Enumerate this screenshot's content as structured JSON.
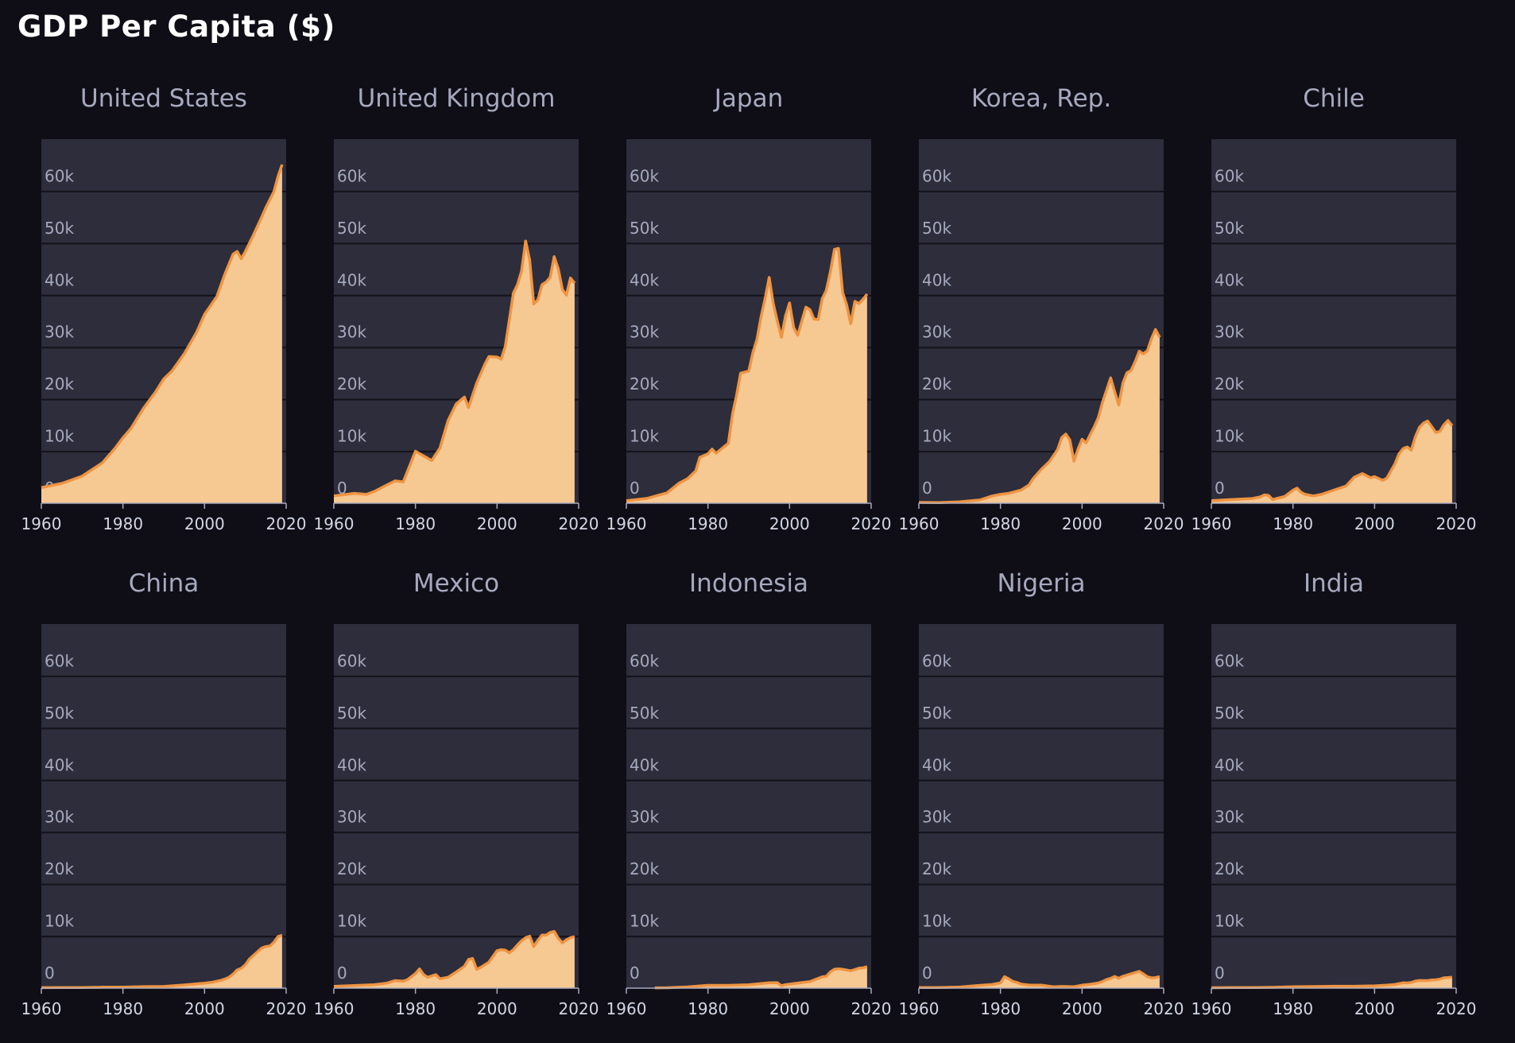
{
  "page": {
    "title": "GDP Per Capita ($)"
  },
  "colors": {
    "background": "#0f0e17",
    "panel": "#2d2d3b",
    "grid": "#14131d",
    "fill": "#f6c892",
    "line": "#ee9442",
    "text": "#a7a9be",
    "title": "#ffffff"
  },
  "chart_data": [
    {
      "type": "area",
      "title": "United States",
      "xlim": [
        1960,
        2020
      ],
      "ylim": [
        0,
        70000
      ],
      "x_ticks": [
        "1960",
        "1980",
        "2000",
        "2020"
      ],
      "y_ticks": [
        "0",
        "10k",
        "20k",
        "30k",
        "40k",
        "50k",
        "60k"
      ],
      "grid": true,
      "x": [
        1960,
        1965,
        1970,
        1975,
        1978,
        1980,
        1982,
        1985,
        1988,
        1990,
        1992,
        1995,
        1998,
        2000,
        2003,
        2005,
        2007,
        2008,
        2009,
        2010,
        2012,
        2014,
        2015,
        2017,
        2018,
        2019
      ],
      "values": [
        3000,
        3800,
        5200,
        7800,
        10500,
        12600,
        14400,
        18200,
        21400,
        23900,
        25400,
        28700,
        32800,
        36300,
        39700,
        44100,
        47900,
        48400,
        47000,
        48400,
        51600,
        55000,
        56800,
        59900,
        62800,
        65100
      ]
    },
    {
      "type": "area",
      "title": "United Kingdom",
      "xlim": [
        1960,
        2020
      ],
      "ylim": [
        0,
        70000
      ],
      "x_ticks": [
        "1960",
        "1980",
        "2000",
        "2020"
      ],
      "y_ticks": [
        "0",
        "10k",
        "20k",
        "30k",
        "40k",
        "50k",
        "60k"
      ],
      "grid": true,
      "x": [
        1960,
        1965,
        1968,
        1970,
        1973,
        1975,
        1977,
        1980,
        1982,
        1984,
        1986,
        1988,
        1990,
        1992,
        1993,
        1995,
        1997,
        1998,
        2000,
        2001,
        2002,
        2004,
        2005,
        2006,
        2007,
        2008,
        2009,
        2010,
        2011,
        2012,
        2013,
        2014,
        2015,
        2016,
        2017,
        2018,
        2019
      ],
      "values": [
        1400,
        1900,
        1700,
        2300,
        3500,
        4300,
        4100,
        10000,
        9100,
        8200,
        10600,
        15900,
        19100,
        20400,
        18400,
        23100,
        26700,
        28200,
        28100,
        27700,
        30100,
        40400,
        42000,
        44600,
        50400,
        46700,
        38300,
        39100,
        42000,
        42500,
        43400,
        47400,
        45100,
        41100,
        40000,
        43300,
        42300
      ]
    },
    {
      "type": "area",
      "title": "Japan",
      "xlim": [
        1960,
        2020
      ],
      "ylim": [
        0,
        70000
      ],
      "x_ticks": [
        "1960",
        "1980",
        "2000",
        "2020"
      ],
      "y_ticks": [
        "0",
        "10k",
        "20k",
        "30k",
        "40k",
        "50k",
        "60k"
      ],
      "grid": true,
      "x": [
        1960,
        1965,
        1970,
        1973,
        1975,
        1977,
        1978,
        1980,
        1981,
        1982,
        1984,
        1985,
        1986,
        1987,
        1988,
        1990,
        1991,
        1992,
        1993,
        1994,
        1995,
        1996,
        1997,
        1998,
        1999,
        2000,
        2001,
        2002,
        2003,
        2004,
        2005,
        2006,
        2007,
        2008,
        2009,
        2010,
        2011,
        2012,
        2013,
        2014,
        2015,
        2016,
        2017,
        2018,
        2019
      ],
      "values": [
        480,
        920,
        2000,
        3900,
        4700,
        6200,
        8800,
        9500,
        10400,
        9600,
        10900,
        11500,
        17100,
        20700,
        25000,
        25400,
        28900,
        31500,
        35800,
        39300,
        43400,
        38400,
        35000,
        31900,
        36000,
        38500,
        33800,
        32300,
        35000,
        37700,
        37200,
        35400,
        35300,
        39300,
        40900,
        44500,
        48800,
        49000,
        40500,
        38100,
        34500,
        38800,
        38400,
        39200,
        40200
      ]
    },
    {
      "type": "area",
      "title": "Korea, Rep.",
      "xlim": [
        1960,
        2020
      ],
      "ylim": [
        0,
        70000
      ],
      "x_ticks": [
        "1960",
        "1980",
        "2000",
        "2020"
      ],
      "y_ticks": [
        "0",
        "10k",
        "20k",
        "30k",
        "40k",
        "50k",
        "60k"
      ],
      "grid": true,
      "x": [
        1960,
        1965,
        1970,
        1975,
        1978,
        1980,
        1982,
        1985,
        1987,
        1988,
        1990,
        1992,
        1994,
        1995,
        1996,
        1997,
        1998,
        1999,
        2000,
        2001,
        2002,
        2003,
        2004,
        2005,
        2006,
        2007,
        2008,
        2009,
        2010,
        2011,
        2012,
        2013,
        2014,
        2015,
        2016,
        2017,
        2018,
        2019
      ],
      "values": [
        160,
        110,
        280,
        620,
        1400,
        1700,
        1900,
        2500,
        3500,
        4700,
        6500,
        8000,
        10300,
        12600,
        13300,
        12200,
        8100,
        10400,
        12300,
        11600,
        13200,
        14700,
        16500,
        19400,
        21700,
        24100,
        21400,
        18900,
        23100,
        25100,
        25500,
        27200,
        29200,
        28700,
        29300,
        31600,
        33400,
        31900
      ]
    },
    {
      "type": "area",
      "title": "Chile",
      "xlim": [
        1960,
        2020
      ],
      "ylim": [
        0,
        70000
      ],
      "x_ticks": [
        "1960",
        "1980",
        "2000",
        "2020"
      ],
      "y_ticks": [
        "0",
        "10k",
        "20k",
        "30k",
        "40k",
        "50k",
        "60k"
      ],
      "grid": true,
      "x": [
        1960,
        1965,
        1970,
        1972,
        1973,
        1974,
        1975,
        1976,
        1978,
        1980,
        1981,
        1982,
        1983,
        1985,
        1987,
        1990,
        1993,
        1995,
        1997,
        1998,
        1999,
        2000,
        2002,
        2003,
        2004,
        2005,
        2006,
        2007,
        2008,
        2009,
        2010,
        2011,
        2012,
        2013,
        2014,
        2015,
        2016,
        2017,
        2018,
        2019
      ],
      "values": [
        500,
        700,
        900,
        1200,
        1600,
        1500,
        700,
        900,
        1300,
        2500,
        2900,
        2100,
        1700,
        1400,
        1700,
        2500,
        3300,
        5000,
        5700,
        5300,
        4900,
        5100,
        4400,
        4800,
        6200,
        7600,
        9500,
        10500,
        10800,
        10200,
        12800,
        14600,
        15400,
        15800,
        14700,
        13600,
        13800,
        15100,
        15900,
        14900
      ]
    },
    {
      "type": "area",
      "title": "China",
      "xlim": [
        1960,
        2020
      ],
      "ylim": [
        0,
        70000
      ],
      "x_ticks": [
        "1960",
        "1980",
        "2000",
        "2020"
      ],
      "y_ticks": [
        "0",
        "10k",
        "20k",
        "30k",
        "40k",
        "50k",
        "60k"
      ],
      "grid": true,
      "x": [
        1960,
        1965,
        1970,
        1975,
        1980,
        1985,
        1990,
        1995,
        2000,
        2002,
        2004,
        2005,
        2006,
        2007,
        2008,
        2009,
        2010,
        2011,
        2012,
        2013,
        2014,
        2015,
        2016,
        2017,
        2018,
        2019
      ],
      "values": [
        90,
        100,
        110,
        180,
        190,
        290,
        320,
        610,
        960,
        1150,
        1500,
        1750,
        2100,
        2700,
        3500,
        3800,
        4500,
        5600,
        6300,
        7000,
        7700,
        8000,
        8100,
        8800,
        9900,
        10200
      ]
    },
    {
      "type": "area",
      "title": "Mexico",
      "xlim": [
        1960,
        2020
      ],
      "ylim": [
        0,
        70000
      ],
      "x_ticks": [
        "1960",
        "1980",
        "2000",
        "2020"
      ],
      "y_ticks": [
        "0",
        "10k",
        "20k",
        "30k",
        "40k",
        "50k",
        "60k"
      ],
      "grid": true,
      "x": [
        1960,
        1965,
        1970,
        1973,
        1975,
        1977,
        1978,
        1980,
        1981,
        1982,
        1983,
        1985,
        1986,
        1988,
        1990,
        1992,
        1993,
        1994,
        1995,
        1996,
        1998,
        2000,
        2001,
        2002,
        2003,
        2004,
        2005,
        2006,
        2007,
        2008,
        2009,
        2010,
        2011,
        2012,
        2013,
        2014,
        2015,
        2016,
        2017,
        2018,
        2019
      ],
      "values": [
        350,
        500,
        680,
        970,
        1450,
        1350,
        1600,
        2800,
        3700,
        2600,
        2100,
        2600,
        1800,
        2100,
        3100,
        4200,
        5500,
        5700,
        3600,
        4000,
        5000,
        7200,
        7400,
        7300,
        6800,
        7400,
        8300,
        9100,
        9700,
        10000,
        8000,
        9200,
        10200,
        10200,
        10700,
        10900,
        9600,
        8700,
        9300,
        9700,
        9900
      ]
    },
    {
      "type": "area",
      "title": "Indonesia",
      "xlim": [
        1960,
        2020
      ],
      "ylim": [
        0,
        70000
      ],
      "x_ticks": [
        "1960",
        "1980",
        "2000",
        "2020"
      ],
      "y_ticks": [
        "0",
        "10k",
        "20k",
        "30k",
        "40k",
        "50k",
        "60k"
      ],
      "grid": true,
      "x": [
        1967,
        1970,
        1975,
        1980,
        1985,
        1990,
        1995,
        1997,
        1998,
        1999,
        2000,
        2003,
        2005,
        2007,
        2008,
        2009,
        2010,
        2011,
        2012,
        2013,
        2014,
        2015,
        2016,
        2017,
        2018,
        2019
      ],
      "values": [
        60,
        80,
        230,
        540,
        530,
        640,
        1030,
        1060,
        460,
        670,
        770,
        1070,
        1260,
        1860,
        2170,
        2260,
        3120,
        3640,
        3700,
        3620,
        3490,
        3330,
        3560,
        3840,
        3890,
        4140
      ]
    },
    {
      "type": "area",
      "title": "Nigeria",
      "xlim": [
        1960,
        2020
      ],
      "ylim": [
        0,
        70000
      ],
      "x_ticks": [
        "1960",
        "1980",
        "2000",
        "2020"
      ],
      "y_ticks": [
        "0",
        "10k",
        "20k",
        "30k",
        "40k",
        "50k",
        "60k"
      ],
      "grid": true,
      "x": [
        1960,
        1965,
        1970,
        1975,
        1978,
        1979,
        1980,
        1981,
        1982,
        1983,
        1984,
        1985,
        1987,
        1990,
        1993,
        1995,
        1998,
        2000,
        2002,
        2004,
        2005,
        2006,
        2007,
        2008,
        2009,
        2010,
        2011,
        2012,
        2013,
        2014,
        2015,
        2016,
        2017,
        2018,
        2019
      ],
      "values": [
        100,
        120,
        220,
        530,
        700,
        860,
        1000,
        2200,
        1800,
        1300,
        1100,
        800,
        600,
        580,
        250,
        320,
        270,
        570,
        750,
        1000,
        1270,
        1650,
        1880,
        2240,
        1890,
        2280,
        2500,
        2730,
        2990,
        3220,
        2730,
        2180,
        1970,
        2030,
        2230
      ]
    },
    {
      "type": "area",
      "title": "India",
      "xlim": [
        1960,
        2020
      ],
      "ylim": [
        0,
        70000
      ],
      "x_ticks": [
        "1960",
        "1980",
        "2000",
        "2020"
      ],
      "y_ticks": [
        "0",
        "10k",
        "20k",
        "30k",
        "40k",
        "50k",
        "60k"
      ],
      "grid": true,
      "x": [
        1960,
        1965,
        1970,
        1975,
        1980,
        1985,
        1990,
        1995,
        2000,
        2003,
        2005,
        2007,
        2008,
        2009,
        2010,
        2011,
        2012,
        2013,
        2014,
        2015,
        2016,
        2017,
        2018,
        2019
      ],
      "values": [
        80,
        120,
        110,
        160,
        270,
        300,
        370,
        370,
        440,
        570,
        710,
        1020,
        1000,
        1100,
        1360,
        1460,
        1450,
        1450,
        1570,
        1600,
        1730,
        1980,
        2010,
        2100
      ]
    }
  ]
}
